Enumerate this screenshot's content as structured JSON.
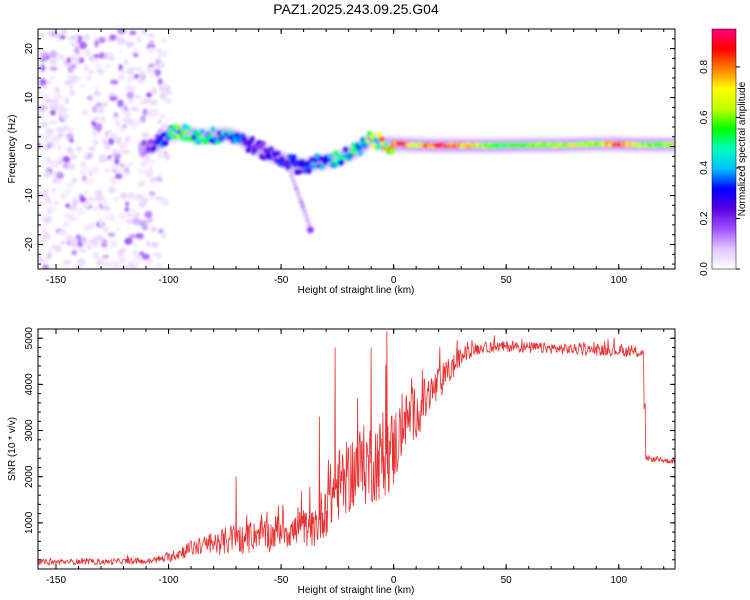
{
  "figure_title": "PAZ1.2025.243.09.25.G04",
  "chart_data": [
    {
      "type": "heatmap",
      "title": "PAZ1.2025.243.09.25.G04",
      "xlabel": "Height of straight line (km)",
      "ylabel": "Frequency (Hz)",
      "xlim": [
        -158,
        125
      ],
      "ylim": [
        -25,
        24
      ],
      "x_ticks": [
        -150,
        -100,
        -50,
        0,
        50,
        100
      ],
      "y_ticks": [
        -20,
        -10,
        0,
        10,
        20
      ],
      "colorbar": {
        "label": "Normalized spectral amplitude",
        "range": [
          0,
          0.95
        ],
        "ticks": [
          0.0,
          0.2,
          0.4,
          0.6,
          0.8
        ],
        "colormap": [
          "#ffffff",
          "#e0c8ff",
          "#a050ff",
          "#5a00e0",
          "#0000ff",
          "#00c0ff",
          "#00ffc0",
          "#00ff00",
          "#c0ff00",
          "#ffff00",
          "#ff8000",
          "#ff0000",
          "#ff0080"
        ]
      },
      "ridge": {
        "description": "dominant frequency vs height",
        "x": [
          -112,
          -105,
          -100,
          -95,
          -90,
          -85,
          -80,
          -75,
          -70,
          -65,
          -60,
          -55,
          -50,
          -45,
          -40,
          -35,
          -30,
          -25,
          -20,
          -15,
          -10,
          -5,
          0,
          5,
          10,
          20,
          30,
          40,
          50,
          60,
          70,
          80,
          90,
          100,
          110,
          125
        ],
        "y": [
          -0.5,
          0.5,
          2.5,
          2.8,
          2.5,
          2.0,
          2.2,
          2.5,
          2.0,
          0.8,
          -0.5,
          -1.5,
          -2.5,
          -3.5,
          -4.0,
          -3.5,
          -3.0,
          -2.5,
          -1.5,
          -0.5,
          1.5,
          0.5,
          0.5,
          0.4,
          0.3,
          0.2,
          0.2,
          0.2,
          0.2,
          0.3,
          0.3,
          0.4,
          0.5,
          0.5,
          0.4,
          0.4
        ],
        "peak_amplitude": [
          0.15,
          0.25,
          0.45,
          0.55,
          0.5,
          0.5,
          0.45,
          0.4,
          0.35,
          0.3,
          0.25,
          0.25,
          0.3,
          0.3,
          0.3,
          0.35,
          0.4,
          0.45,
          0.5,
          0.5,
          0.55,
          0.7,
          0.8,
          0.85,
          0.6,
          0.9,
          0.8,
          0.6,
          0.55,
          0.55,
          0.6,
          0.65,
          0.6,
          0.85,
          0.6,
          0.6
        ]
      },
      "secondary_feature": {
        "x": -37,
        "y": -17,
        "amplitude": 0.2
      }
    },
    {
      "type": "line",
      "xlabel": "Height of straight line (km)",
      "ylabel": "SNR (10 * v/v)",
      "xlim": [
        -158,
        125
      ],
      "ylim": [
        0,
        5200
      ],
      "x_ticks": [
        -150,
        -100,
        -50,
        0,
        50,
        100
      ],
      "y_ticks": [
        1000,
        2000,
        3000,
        4000,
        5000
      ],
      "color": "#e83030",
      "series": [
        {
          "name": "SNR",
          "x": [
            -158,
            -150,
            -140,
            -130,
            -120,
            -110,
            -100,
            -95,
            -90,
            -85,
            -80,
            -75,
            -70,
            -65,
            -60,
            -55,
            -50,
            -45,
            -40,
            -35,
            -30,
            -25,
            -20,
            -15,
            -10,
            -5,
            0,
            5,
            10,
            15,
            20,
            25,
            30,
            35,
            40,
            50,
            60,
            70,
            80,
            90,
            100,
            105,
            110,
            111,
            112,
            115,
            120,
            125
          ],
          "y": [
            150,
            150,
            160,
            150,
            170,
            160,
            250,
            350,
            450,
            500,
            550,
            600,
            700,
            600,
            800,
            700,
            900,
            800,
            900,
            850,
            1400,
            1800,
            2000,
            2200,
            2300,
            2400,
            2600,
            3200,
            3400,
            3700,
            4000,
            4300,
            4600,
            4750,
            4800,
            4820,
            4800,
            4780,
            4760,
            4740,
            4730,
            4700,
            4700,
            4650,
            2400,
            2380,
            2350,
            2340
          ],
          "noise_amplitude": [
            60,
            60,
            60,
            60,
            60,
            60,
            100,
            150,
            180,
            200,
            260,
            300,
            350,
            300,
            320,
            350,
            400,
            400,
            400,
            400,
            700,
            800,
            800,
            900,
            900,
            900,
            900,
            600,
            600,
            500,
            400,
            300,
            200,
            150,
            120,
            120,
            120,
            120,
            120,
            120,
            120,
            120,
            120,
            120,
            60,
            60,
            60,
            60
          ],
          "spikes": [
            {
              "x": -70,
              "y": 2000
            },
            {
              "x": -33,
              "y": 3300
            },
            {
              "x": -26,
              "y": 4800
            },
            {
              "x": -10,
              "y": 4800
            },
            {
              "x": -3,
              "y": 5150
            }
          ]
        }
      ]
    }
  ]
}
